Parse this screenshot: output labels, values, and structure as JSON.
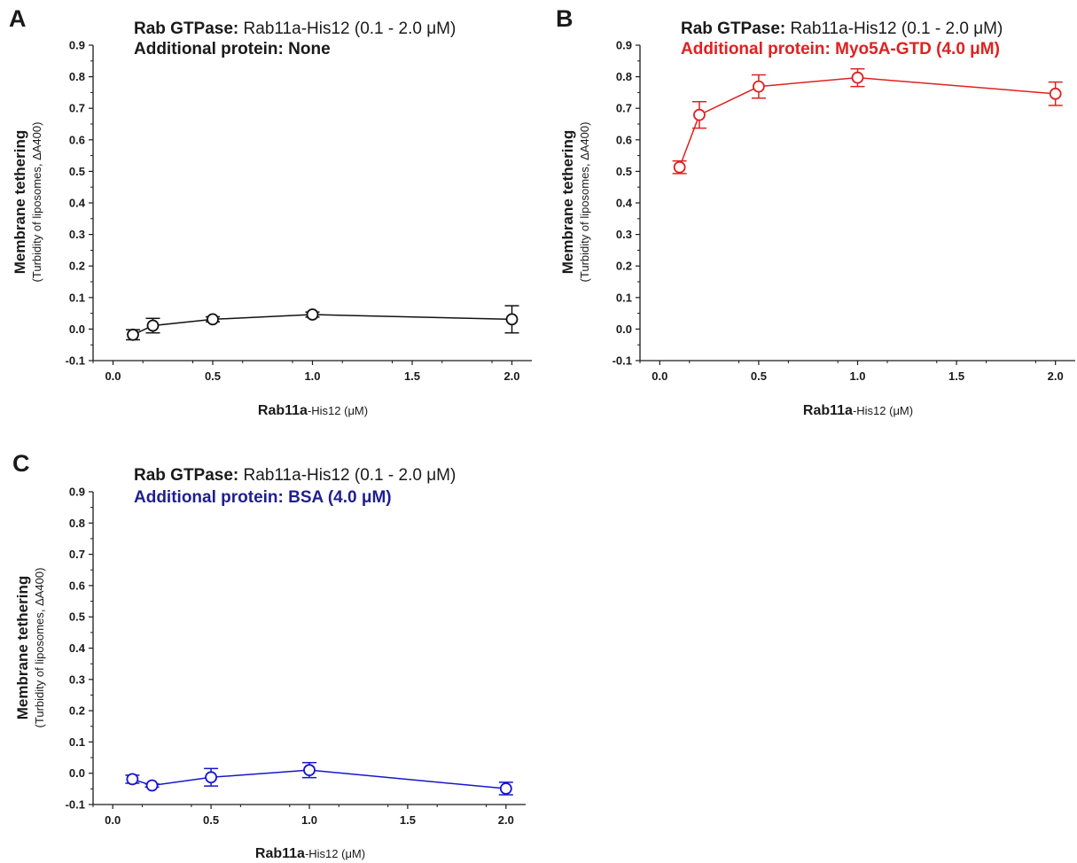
{
  "chart_data": [
    {
      "type": "line",
      "panel_label": "A",
      "title_line1_bold": "Rab GTPase:",
      "title_line1_rest": " Rab11a-His12 (0.1 - 2.0 μM)",
      "title_line2": "Additional protein: None",
      "title_line2_color": "#1a1a1a",
      "ylabel_main": "Membrane tethering",
      "ylabel_sub": "(Turbidity of liposomes, ΔA400)",
      "xlabel_bold": "Rab11a",
      "xlabel_rest": "-His12 (μM)",
      "xlim": [
        -0.1,
        2.1
      ],
      "ylim": [
        -0.1,
        0.9
      ],
      "xticks": [
        "0.0",
        "0.5",
        "1.0",
        "1.5",
        "2.0"
      ],
      "yticks": [
        "-0.1",
        "0.0",
        "0.1",
        "0.2",
        "0.3",
        "0.4",
        "0.5",
        "0.6",
        "0.7",
        "0.8",
        "0.9"
      ],
      "color": "#111111",
      "series": [
        {
          "x": [
            0.1,
            0.2,
            0.5,
            1.0,
            2.0
          ],
          "y": [
            -0.018,
            0.011,
            0.031,
            0.046,
            0.031
          ],
          "err": [
            0.016,
            0.023,
            0.008,
            0.008,
            0.043
          ]
        }
      ]
    },
    {
      "type": "line",
      "panel_label": "B",
      "title_line1_bold": "Rab GTPase:",
      "title_line1_rest": " Rab11a-His12 (0.1 - 2.0 μM)",
      "title_line2": "Additional protein: Myo5A-GTD (4.0 μM)",
      "title_line2_color": "#e02020",
      "ylabel_main": "Membrane tethering",
      "ylabel_sub": "(Turbidity of liposomes, ΔA400)",
      "xlabel_bold": "Rab11a",
      "xlabel_rest": "-His12 (μM)",
      "xlim": [
        -0.1,
        2.1
      ],
      "ylim": [
        -0.1,
        0.9
      ],
      "xticks": [
        "0.0",
        "0.5",
        "1.0",
        "1.5",
        "2.0"
      ],
      "yticks": [
        "-0.1",
        "0.0",
        "0.1",
        "0.2",
        "0.3",
        "0.4",
        "0.5",
        "0.6",
        "0.7",
        "0.8",
        "0.9"
      ],
      "color": "#e02020",
      "series": [
        {
          "x": [
            0.1,
            0.2,
            0.5,
            1.0,
            2.0
          ],
          "y": [
            0.513,
            0.679,
            0.769,
            0.797,
            0.746
          ],
          "err": [
            0.02,
            0.042,
            0.037,
            0.028,
            0.037
          ]
        }
      ]
    },
    {
      "type": "line",
      "panel_label": "C",
      "title_line1_bold": "Rab GTPase:",
      "title_line1_rest": " Rab11a-His12 (0.1 - 2.0 μM)",
      "title_line2": "Additional protein: BSA (4.0 μM)",
      "title_line2_color": "#1f1f8f",
      "ylabel_main": "Membrane tethering",
      "ylabel_sub": "(Turbidity of liposomes, ΔA400)",
      "xlabel_bold": "Rab11a",
      "xlabel_rest": "-His12 (μM)",
      "xlim": [
        -0.1,
        2.1
      ],
      "ylim": [
        -0.1,
        0.9
      ],
      "xticks": [
        "0.0",
        "0.5",
        "1.0",
        "1.5",
        "2.0"
      ],
      "yticks": [
        "-0.1",
        "0.0",
        "0.1",
        "0.2",
        "0.3",
        "0.4",
        "0.5",
        "0.6",
        "0.7",
        "0.8",
        "0.9"
      ],
      "color": "#1515d0",
      "series": [
        {
          "x": [
            0.1,
            0.2,
            0.5,
            1.0,
            2.0
          ],
          "y": [
            -0.019,
            -0.039,
            -0.013,
            0.01,
            -0.049
          ],
          "err": [
            0.013,
            0.005,
            0.028,
            0.024,
            0.02
          ]
        }
      ]
    }
  ]
}
